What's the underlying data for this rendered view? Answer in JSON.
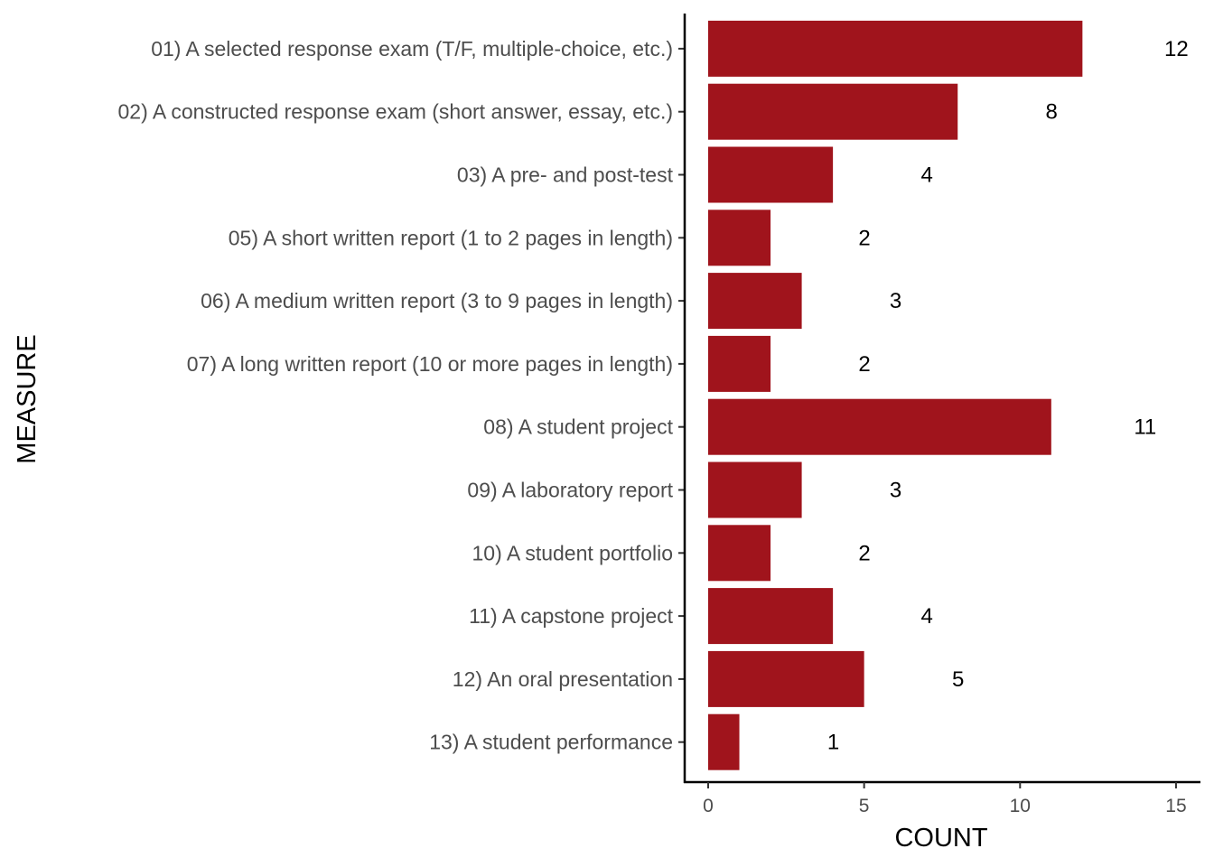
{
  "chart_data": {
    "type": "bar",
    "orientation": "horizontal",
    "categories": [
      "01) A selected response exam (T/F, multiple-choice, etc.)",
      "02) A constructed response exam (short answer, essay, etc.)",
      "03) A pre- and post-test",
      "05) A short written report (1 to 2 pages in length)",
      "06) A medium written report (3 to 9 pages in length)",
      "07) A long written report (10 or more pages in length)",
      "08) A student project",
      "09) A laboratory report",
      "10) A student portfolio",
      "11) A capstone project",
      "12) An oral presentation",
      "13) A student performance"
    ],
    "values": [
      12,
      8,
      4,
      2,
      3,
      2,
      11,
      3,
      2,
      4,
      5,
      1
    ],
    "data_labels": [
      "12",
      "8",
      "4",
      "2",
      "3",
      "2",
      "11",
      "3",
      "2",
      "4",
      "5",
      "1"
    ],
    "xlabel": "COUNT",
    "ylabel": "MEASURE",
    "xlim": [
      0,
      15
    ],
    "x_ticks": [
      0,
      5,
      10,
      15
    ],
    "bar_color": "#a0141c",
    "grid": false,
    "legend": "none"
  }
}
